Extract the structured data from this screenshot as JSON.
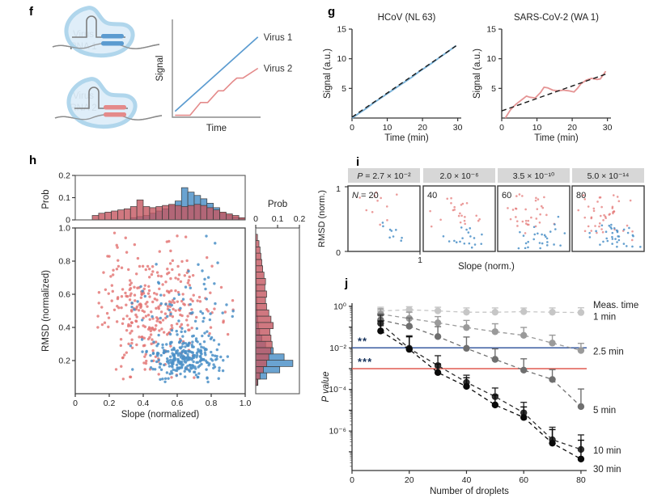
{
  "figure": {
    "background": "#ffffff"
  },
  "panels": {
    "f": {
      "label": "f",
      "rna1_line1": "Virus",
      "rna1_line2": "RNA 1",
      "rna2_line1": "Virus",
      "rna2_line2": "RNA 2"
    },
    "g": {
      "label": "g"
    },
    "h": {
      "label": "h"
    },
    "i": {
      "label": "i"
    },
    "j": {
      "label": "j"
    }
  },
  "colors": {
    "virus1_blue": "#5b9bd0",
    "virus2_red": "#e48a8a",
    "blob_fill": "#dcedf8",
    "blob_edge": "#b0d6ec",
    "rna_strand": "#8a8a8a",
    "scatter_red": "#e2716f",
    "scatter_blue": "#4a8fc7",
    "hist_red": "rgb(196,86,96)",
    "hist_blue": "#6aa3d1",
    "hist_edge": "#3b3b3b",
    "sig_blue_line": "#3a5ba0",
    "sig_red_line": "#e05c50",
    "asterisk": "#16325c",
    "i_header_bg": "#d7d7d7",
    "axis": "#333333",
    "spine_gray": "#8c8c8c"
  },
  "chart_data": [
    {
      "id": "f-schematic",
      "type": "line",
      "xlabel": "Time",
      "ylabel": "Signal",
      "xlim": [
        0,
        1
      ],
      "ylim": [
        0,
        1
      ],
      "series": [
        {
          "name": "Virus 1",
          "color": "#5b9bd0",
          "width": 1.7,
          "points": [
            [
              0.03,
              0.06
            ],
            [
              0.97,
              0.82
            ]
          ]
        },
        {
          "name": "Virus 2",
          "color": "#e48a8a",
          "width": 1.6,
          "points": [
            [
              0.03,
              0.02
            ],
            [
              0.2,
              0.02
            ],
            [
              0.32,
              0.15
            ],
            [
              0.4,
              0.15
            ],
            [
              0.52,
              0.27
            ],
            [
              0.58,
              0.27
            ],
            [
              0.68,
              0.36
            ],
            [
              0.73,
              0.4
            ],
            [
              0.8,
              0.4
            ],
            [
              0.97,
              0.5
            ]
          ]
        }
      ]
    },
    {
      "id": "g-hcov",
      "type": "line",
      "title": "HCoV (NL 63)",
      "xlabel": "Time (min)",
      "ylabel": "Signal (a.u.)",
      "xlim": [
        0,
        31
      ],
      "ylim": [
        0,
        15
      ],
      "xticks": [
        0,
        10,
        20,
        30
      ],
      "yticks": [
        5,
        10,
        15
      ],
      "series": [
        {
          "name": "signal",
          "color": "#7cb4da",
          "width": 2,
          "points": [
            [
              0,
              0
            ],
            [
              2,
              0.8
            ],
            [
              4,
              1.6
            ],
            [
              6,
              2.5
            ],
            [
              8,
              3.3
            ],
            [
              10,
              4.1
            ],
            [
              12,
              4.9
            ],
            [
              13,
              5.3
            ],
            [
              15,
              6.1
            ],
            [
              17,
              6.9
            ],
            [
              19,
              7.8
            ],
            [
              21,
              8.6
            ],
            [
              23,
              9.4
            ],
            [
              25,
              10.3
            ],
            [
              27,
              11.1
            ],
            [
              29.5,
              12.2
            ]
          ]
        },
        {
          "name": "linear fit",
          "color": "#1a1a1a",
          "dash": true,
          "width": 1.4,
          "points": [
            [
              0,
              0.15
            ],
            [
              30,
              12.35
            ]
          ]
        }
      ]
    },
    {
      "id": "g-sars",
      "type": "line",
      "title": "SARS-CoV-2 (WA 1)",
      "xlabel": "Time (min)",
      "ylabel": "Signal (a.u.)",
      "xlim": [
        0,
        31
      ],
      "ylim": [
        0,
        15
      ],
      "xticks": [
        0,
        10,
        20,
        30
      ],
      "yticks": [
        5,
        10,
        15
      ],
      "series": [
        {
          "name": "signal",
          "color": "#e59494",
          "width": 1.8,
          "points": [
            [
              1,
              0
            ],
            [
              2.5,
              1.4
            ],
            [
              4,
              2.3
            ],
            [
              5.5,
              3.0
            ],
            [
              7,
              3.7
            ],
            [
              8,
              3.5
            ],
            [
              9.5,
              3.4
            ],
            [
              11,
              4.3
            ],
            [
              12,
              5.2
            ],
            [
              13,
              5.1
            ],
            [
              14.5,
              4.7
            ],
            [
              16,
              4.6
            ],
            [
              17.5,
              4.7
            ],
            [
              19,
              4.6
            ],
            [
              20.5,
              4.4
            ],
            [
              21.5,
              5.0
            ],
            [
              22.5,
              5.8
            ],
            [
              24,
              6.4
            ],
            [
              25.5,
              6.7
            ],
            [
              27,
              6.5
            ],
            [
              28,
              6.6
            ],
            [
              29.5,
              7.9
            ]
          ]
        },
        {
          "name": "linear fit",
          "color": "#1a1a1a",
          "dash": true,
          "width": 1.4,
          "points": [
            [
              0,
              1.2
            ],
            [
              30,
              7.5
            ]
          ]
        }
      ]
    },
    {
      "id": "h-joint",
      "type": "joint",
      "xlabel": "Slope (normalized)",
      "ylabel": "RMSD (normalized)",
      "prob_label": "Prob",
      "xlim": [
        0,
        1
      ],
      "ylim": [
        0,
        1
      ],
      "xtick_labels": [
        "0",
        "0.2",
        "0.4",
        "0.6",
        "0.8",
        "1.0"
      ],
      "xtick_values": [
        0,
        0.2,
        0.4,
        0.6,
        0.8,
        1.0
      ],
      "ytick_labels": [
        "0.2",
        "0.4",
        "0.6",
        "0.8",
        "1.0"
      ],
      "ytick_values": [
        0.2,
        0.4,
        0.6,
        0.8,
        1.0
      ],
      "prob_tick_labels": [
        "0",
        "0.1",
        "0.2"
      ],
      "prob_tick_values": [
        0,
        0.1,
        0.2
      ],
      "top_hist": {
        "bin_start": 0.1,
        "bin_width": 0.0375,
        "red": [
          0.02,
          0.03,
          0.035,
          0.04,
          0.045,
          0.05,
          0.06,
          0.09,
          0.06,
          0.055,
          0.06,
          0.065,
          0.07,
          0.065,
          0.06,
          0.065,
          0.07,
          0.065,
          0.055,
          0.045,
          0.035,
          0.027,
          0.02,
          0.01
        ],
        "blue": [
          0,
          0,
          0,
          0,
          0,
          0,
          0.01,
          0.015,
          0.02,
          0.03,
          0.04,
          0.05,
          0.065,
          0.085,
          0.145,
          0.125,
          0.11,
          0.095,
          0.075,
          0.055,
          0.03,
          0.022,
          0.012,
          0.005
        ]
      },
      "right_hist": {
        "bin_start": 0.05,
        "bin_width": 0.038,
        "red": [
          0.008,
          0.02,
          0.035,
          0.05,
          0.06,
          0.07,
          0.075,
          0.07,
          0.065,
          0.08,
          0.07,
          0.06,
          0.05,
          0.045,
          0.05,
          0.042,
          0.045,
          0.038,
          0.032,
          0.028,
          0.024,
          0.02,
          0.015,
          0.008
        ],
        "blue": [
          0.01,
          0.05,
          0.11,
          0.17,
          0.13,
          0.08,
          0.045,
          0.028,
          0.018,
          0.012,
          0.009,
          0.007,
          0.006,
          0.005,
          0.004,
          0.004,
          0.003,
          0.003,
          0.002,
          0.002,
          0.002,
          0.001,
          0.001,
          0
        ]
      },
      "scatter": {
        "red": {
          "n": 320,
          "cx": 0.46,
          "cy": 0.52,
          "sx": 0.17,
          "sy": 0.2,
          "seed": 7
        },
        "blue": {
          "n": 330,
          "w1": 0.7,
          "c1": {
            "cx": 0.655,
            "cy": 0.21,
            "sx": 0.095,
            "sy": 0.055
          },
          "c2": {
            "cx": 0.6,
            "cy": 0.46,
            "sx": 0.14,
            "sy": 0.2
          },
          "seed": 11
        },
        "clip": {
          "x": [
            0.13,
            0.94
          ],
          "y": [
            0.06,
            0.97
          ]
        }
      }
    },
    {
      "id": "i-grid",
      "type": "grid",
      "p_labels": [
        "P = 2.7 × 10⁻²",
        "2.0 × 10⁻⁶",
        "3.5 × 10⁻¹⁰",
        "5.0 × 10⁻¹⁴"
      ],
      "n_labels": [
        "N = 20",
        "40",
        "60",
        "80"
      ],
      "n_values": [
        20,
        40,
        60,
        80
      ],
      "ylabel": "RMSD (norm.)",
      "xlabel": "Slope (norm.)",
      "ytick_labels": [
        "0",
        "1"
      ],
      "xtick_label": "1",
      "seed": 5
    },
    {
      "id": "j-pvalue",
      "type": "loglines",
      "xlabel": "Number of droplets",
      "ylabel": "P value",
      "xticks": [
        0,
        20,
        40,
        60,
        80
      ],
      "xlim": [
        0,
        82
      ],
      "ytick_labels": [
        "10⁰",
        "10⁻²",
        "10⁻⁴",
        "10⁻⁶"
      ],
      "ytick_exp": [
        0,
        -2,
        -4,
        -6
      ],
      "ylim_exp": [
        -7.9,
        0.15
      ],
      "x": [
        10,
        20,
        30,
        40,
        50,
        60,
        70,
        80
      ],
      "legend_title": "Meas. time",
      "series": [
        {
          "name": "1 min",
          "color": "#c6c6c6",
          "values": [
            0.6,
            0.68,
            0.6,
            0.52,
            0.52,
            0.55,
            0.52,
            0.5
          ],
          "err_mult": [
            1.5,
            1.4,
            1.5,
            1.6,
            1.6,
            1.5,
            1.6,
            1.7
          ]
        },
        {
          "name": "2.5 min",
          "color": "#9a9a9a",
          "values": [
            0.42,
            0.26,
            0.16,
            0.095,
            0.06,
            0.04,
            0.017,
            0.0075
          ],
          "err_mult": [
            1.8,
            2.0,
            2.0,
            2.2,
            2.4,
            2.4,
            2.4,
            2.2
          ]
        },
        {
          "name": "5 min",
          "color": "#6f6f6f",
          "values": [
            0.22,
            0.11,
            0.035,
            0.0095,
            0.0028,
            0.00085,
            0.0003,
            1.5e-05
          ],
          "err_mult": [
            2.0,
            2.5,
            3.0,
            3.5,
            3.2,
            3.5,
            3.0,
            7.0
          ]
        },
        {
          "name": "10 min",
          "color": "#2e2e2e",
          "values": [
            0.15,
            0.0095,
            0.0014,
            0.00022,
            4.5e-05,
            7.5e-06,
            3.8e-07,
            1.3e-07
          ],
          "err_mult": [
            2.5,
            4.0,
            3.0,
            2.2,
            2.6,
            3.2,
            4.0,
            5.0
          ]
        },
        {
          "name": "30 min",
          "color": "#0a0a0a",
          "values": [
            0.065,
            0.0085,
            0.00065,
            0.00014,
            1.8e-05,
            4.5e-06,
            2.6e-07,
            4.5e-08
          ],
          "err_mult": [
            3.0,
            4.0,
            2.6,
            2.6,
            3.0,
            3.2,
            4.5,
            8.0
          ]
        }
      ],
      "hlines": [
        {
          "value": 0.01,
          "color": "#3a5ba0",
          "label": "**"
        },
        {
          "value": 0.001,
          "color": "#e05c50",
          "label": "***"
        }
      ]
    }
  ]
}
